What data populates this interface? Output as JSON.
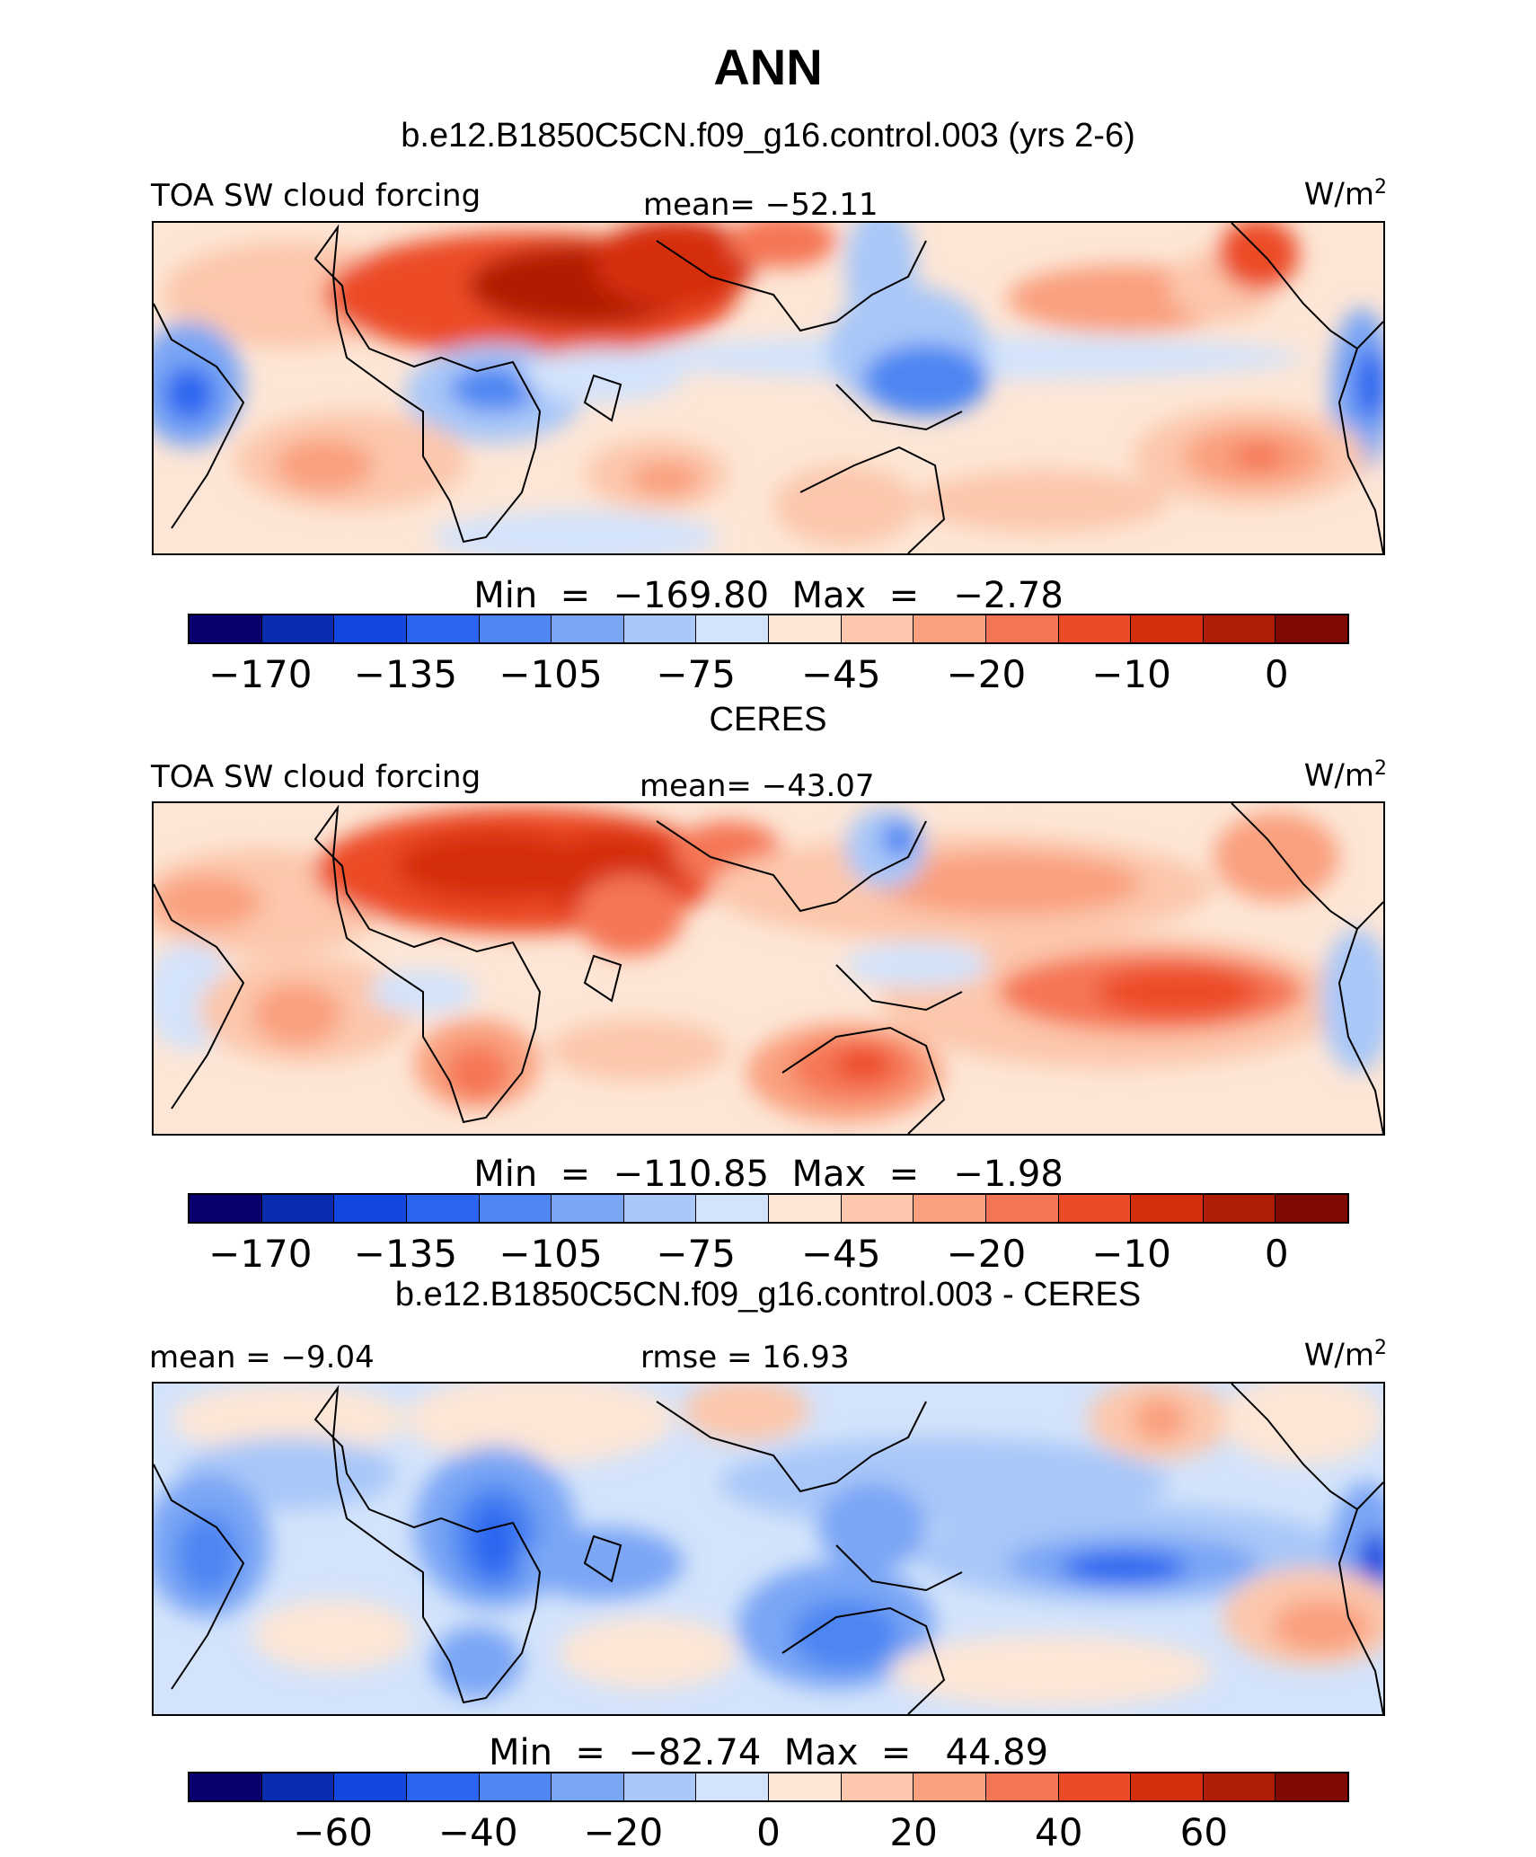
{
  "title": "ANN",
  "panels": [
    {
      "id": "model",
      "header": "b.e12.B1850C5CN.f09_g16.control.003 (yrs 2-6)",
      "left_label": "TOA SW cloud forcing",
      "center_label": "mean= −52.11",
      "units_base": "W/m",
      "units_exp": "2",
      "minmax": "Min  =  −169.80  Max  =   −2.78",
      "colorbar_ticks": [
        "−170",
        "−135",
        "−105",
        "−75",
        "−45",
        "−20",
        "−10",
        "0"
      ]
    },
    {
      "id": "obs",
      "header": "CERES",
      "left_label": "TOA SW cloud forcing",
      "center_label": "mean= −43.07",
      "units_base": "W/m",
      "units_exp": "2",
      "minmax": "Min  =  −110.85  Max  =   −1.98",
      "colorbar_ticks": [
        "−170",
        "−135",
        "−105",
        "−75",
        "−45",
        "−20",
        "−10",
        "0"
      ]
    },
    {
      "id": "diff",
      "header": "b.e12.B1850C5CN.f09_g16.control.003 - CERES",
      "left_label": "mean =   −9.04",
      "center_label": "rmse =   16.93",
      "units_base": "W/m",
      "units_exp": "2",
      "minmax": "Min  =  −82.74  Max  =   44.89",
      "colorbar_ticks": [
        "−60",
        "−40",
        "−20",
        "0",
        "20",
        "40",
        "60"
      ]
    }
  ],
  "colors": {
    "palette": [
      "#08006e",
      "#0a2cb0",
      "#1248e0",
      "#2a66f0",
      "#4d86f2",
      "#7aa6f5",
      "#a9c7f8",
      "#d3e3fb",
      "#fde6d6",
      "#fcc7ac",
      "#f9a07f",
      "#f57654",
      "#ec4b27",
      "#d52e0e",
      "#b01d06",
      "#7e0a03"
    ]
  },
  "chart_data": [
    {
      "type": "heatmap",
      "title": "b.e12.B1850C5CN.f09_g16.control.003 (yrs 2-6)",
      "variable": "TOA SW cloud forcing",
      "units": "W/m2",
      "mean": -52.11,
      "min": -169.8,
      "max": -2.78,
      "colorbar_levels": [
        -170,
        -160,
        -150,
        -135,
        -120,
        -105,
        -90,
        -75,
        -60,
        -45,
        -30,
        -20,
        -15,
        -10,
        -5,
        0
      ],
      "colorbar_tick_labels": [
        -170,
        -135,
        -105,
        -75,
        -45,
        -20,
        -10,
        0
      ]
    },
    {
      "type": "heatmap",
      "title": "CERES",
      "variable": "TOA SW cloud forcing",
      "units": "W/m2",
      "mean": -43.07,
      "min": -110.85,
      "max": -1.98,
      "colorbar_levels": [
        -170,
        -160,
        -150,
        -135,
        -120,
        -105,
        -90,
        -75,
        -60,
        -45,
        -30,
        -20,
        -15,
        -10,
        -5,
        0
      ],
      "colorbar_tick_labels": [
        -170,
        -135,
        -105,
        -75,
        -45,
        -20,
        -10,
        0
      ]
    },
    {
      "type": "heatmap",
      "title": "b.e12.B1850C5CN.f09_g16.control.003 - CERES",
      "units": "W/m2",
      "mean": -9.04,
      "rmse": 16.93,
      "min": -82.74,
      "max": 44.89,
      "colorbar_levels": [
        -70,
        -60,
        -50,
        -40,
        -30,
        -20,
        -10,
        0,
        10,
        20,
        30,
        40,
        50,
        60,
        70
      ],
      "colorbar_tick_labels": [
        -60,
        -40,
        -20,
        0,
        20,
        40,
        60
      ]
    }
  ]
}
